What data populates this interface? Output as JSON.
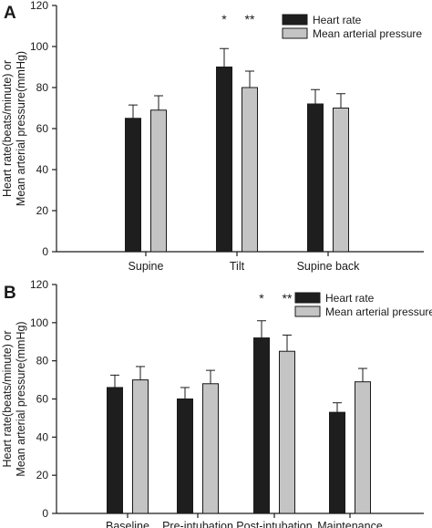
{
  "chart_data": [
    {
      "panel": "A",
      "type": "bar",
      "categories": [
        "Supine",
        "Tilt",
        "Supine back"
      ],
      "series": [
        {
          "name": "Heart rate",
          "color": "#1e1e1e",
          "values": [
            65,
            90,
            72
          ],
          "errors": [
            6.5,
            9,
            7
          ]
        },
        {
          "name": "Mean arterial pressure",
          "color": "#c4c4c4",
          "values": [
            69,
            80,
            70
          ],
          "errors": [
            7,
            8,
            7
          ]
        }
      ],
      "ylim": [
        0,
        120
      ],
      "yticks": [
        0,
        20,
        40,
        60,
        80,
        100,
        120
      ],
      "ylabel_lines": [
        "Heart rate(beats/minute) or",
        "Mean arterial pressure(mmHg)"
      ],
      "annotations": [
        {
          "category": "Tilt",
          "series": "Heart rate",
          "text": "*"
        },
        {
          "category": "Tilt",
          "series": "Mean arterial pressure",
          "text": "**"
        }
      ],
      "legend_position": "top-right"
    },
    {
      "panel": "B",
      "type": "bar",
      "categories": [
        "Baseline",
        "Pre-intubation",
        "Post-intubation",
        "Maintenance"
      ],
      "series": [
        {
          "name": "Heart rate",
          "color": "#1e1e1e",
          "values": [
            66,
            60,
            92,
            53
          ],
          "errors": [
            6.5,
            6,
            9,
            5
          ]
        },
        {
          "name": "Mean arterial pressure",
          "color": "#c4c4c4",
          "values": [
            70,
            68,
            85,
            69
          ],
          "errors": [
            7,
            7,
            8.5,
            7
          ]
        }
      ],
      "ylim": [
        0,
        120
      ],
      "yticks": [
        0,
        20,
        40,
        60,
        80,
        100,
        120
      ],
      "ylabel_lines": [
        "Heart rate(beats/minute) or",
        "Mean arterial pressure(mmHg)"
      ],
      "annotations": [
        {
          "category": "Post-intubation",
          "series": "Heart rate",
          "text": "*"
        },
        {
          "category": "Post-intubation",
          "series": "Mean arterial pressure",
          "text": "**"
        }
      ],
      "legend_position": "top-right"
    }
  ]
}
